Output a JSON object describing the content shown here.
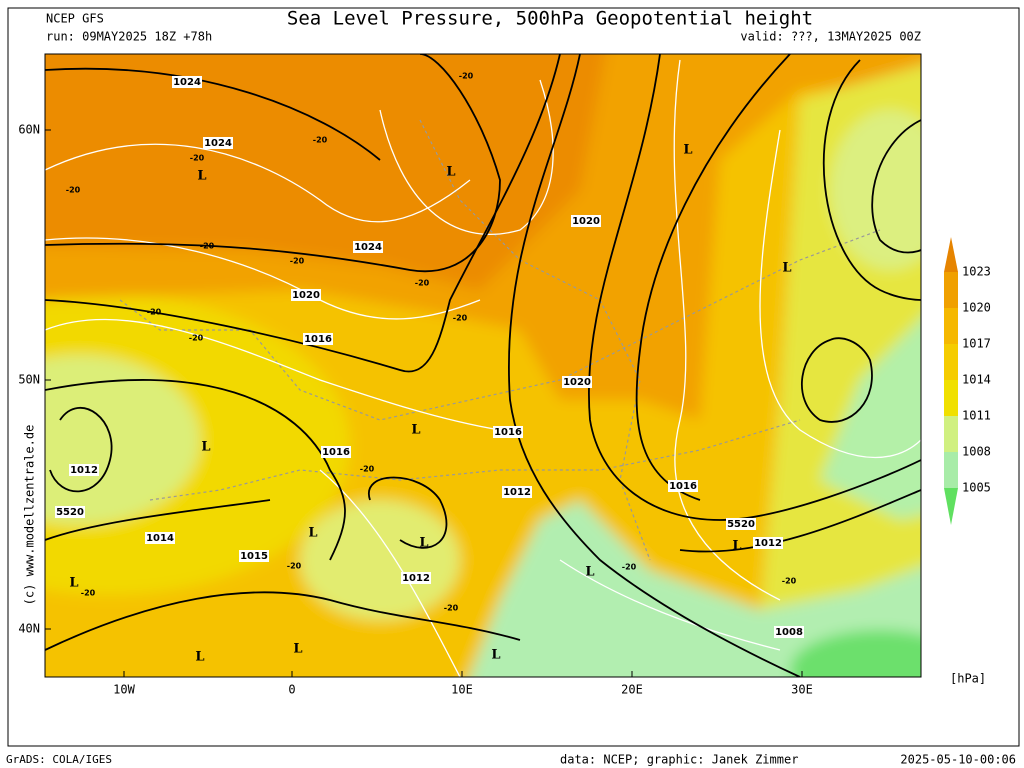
{
  "header": {
    "model": "NCEP GFS",
    "run": "run: 09MAY2025 18Z +78h",
    "title": "Sea Level Pressure, 500hPa Geopotential height",
    "valid": "valid: ???, 13MAY2025 00Z"
  },
  "map": {
    "lat_labels": [
      "60N",
      "50N",
      "40N"
    ],
    "lon_labels": [
      "10W",
      "0",
      "10E",
      "20E",
      "30E"
    ],
    "labels": [
      "1024",
      "1024",
      "1024",
      "1020",
      "1020",
      "1020",
      "1016",
      "1016",
      "1016",
      "1016",
      "1012",
      "1012",
      "1012",
      "1012",
      "1014",
      "1015",
      "1008",
      "5520",
      "5520",
      "-20",
      "-20",
      "-20",
      "-20",
      "-20",
      "-20",
      "-20",
      "-20",
      "-20",
      "-20",
      "-20",
      "-20",
      "-20",
      "-20",
      "-20",
      "-20",
      "L",
      "L",
      "L",
      "L",
      "L",
      "L",
      "L",
      "L",
      "L",
      "L",
      "L",
      "L",
      "L",
      "L"
    ],
    "copyright": "(c) www.modellzentrale.de"
  },
  "legend": {
    "labels": [
      "1023",
      "1020",
      "1017",
      "1014",
      "1011",
      "1008",
      "1005"
    ],
    "unit": "[hPa]"
  },
  "footer": {
    "software": "GrADS: COLA/IGES",
    "credit": "data: NCEP; graphic: Janek Zimmer",
    "timestamp": "2025-05-10-00:06"
  }
}
